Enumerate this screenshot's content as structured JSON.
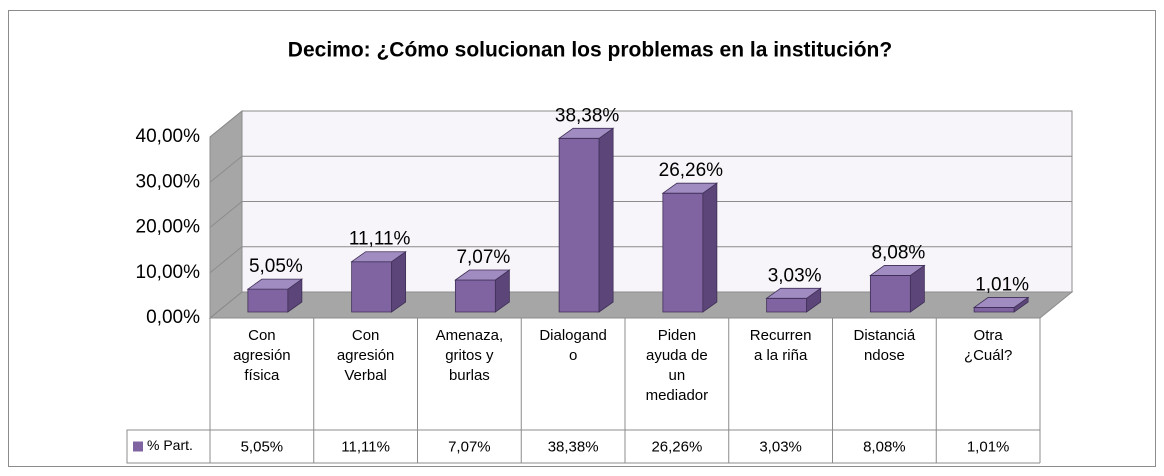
{
  "chart_data": {
    "type": "bar3d",
    "title": "Decimo: ¿Cómo solucionan los problemas en la institución?",
    "categories": [
      "Con\nagresión\nfísica",
      "Con\nagresión\nVerbal",
      "Amenaza,\ngritos y\nburlas",
      "Dialogand\no",
      "Piden\nayuda de\nun\nmediador",
      "Recurren\na la riña",
      "Distanciá\nndose",
      "Otra\n¿Cuál?"
    ],
    "series": [
      {
        "name": "% Part.",
        "color": "#8064a2",
        "values": [
          5.05,
          11.11,
          7.07,
          38.38,
          26.26,
          3.03,
          8.08,
          1.01
        ],
        "value_labels": [
          "5,05%",
          "11,11%",
          "7,07%",
          "38,38%",
          "26,26%",
          "3,03%",
          "8,08%",
          "1,01%"
        ]
      }
    ],
    "ylim": [
      0,
      40
    ],
    "yticks": [
      {
        "value": 0,
        "label": "0,00%"
      },
      {
        "value": 10,
        "label": "10,00%"
      },
      {
        "value": 20,
        "label": "20,00%"
      },
      {
        "value": 30,
        "label": "30,00%"
      },
      {
        "value": 40,
        "label": "40,00%"
      }
    ],
    "grid": true,
    "data_table": true
  }
}
